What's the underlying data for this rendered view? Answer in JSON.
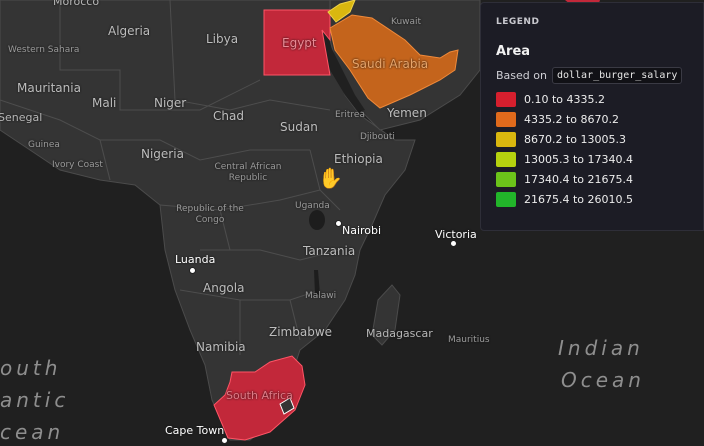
{
  "legend": {
    "header": "LEGEND",
    "title": "Area",
    "based_on_label": "Based on",
    "field": "dollar_burger_salary",
    "items": [
      {
        "label": "0.10 to 4335.2",
        "color": "#d61f2e"
      },
      {
        "label": "4335.2 to 8670.2",
        "color": "#e06a1c"
      },
      {
        "label": "8670.2 to 13005.3",
        "color": "#d9b70f"
      },
      {
        "label": "13005.3 to 17340.4",
        "color": "#b6d20f"
      },
      {
        "label": "17340.4 to 21675.4",
        "color": "#6cc31a"
      },
      {
        "label": "21675.4 to 26010.5",
        "color": "#22b52a"
      }
    ]
  },
  "map": {
    "countries": {
      "morocco": "Morocco",
      "western_sahara": "Western Sahara",
      "algeria": "Algeria",
      "libya": "Libya",
      "egypt": "Egypt",
      "saudi_arabia": "Saudi Arabia",
      "kuwait": "Kuwait",
      "mauritania": "Mauritania",
      "mali": "Mali",
      "niger": "Niger",
      "chad": "Chad",
      "sudan": "Sudan",
      "eritrea": "Eritrea",
      "yemen": "Yemen",
      "djibouti": "Djibouti",
      "senegal": "Senegal",
      "guinea": "Guinea",
      "ivory_coast": "Ivory Coast",
      "nigeria": "Nigeria",
      "car": "Central African Republic",
      "ethiopia": "Ethiopia",
      "congo": "Republic of the Congo",
      "uganda": "Uganda",
      "tanzania": "Tanzania",
      "angola": "Angola",
      "malawi": "Malawi",
      "zimbabwe": "Zimbabwe",
      "namibia": "Namibia",
      "madagascar": "Madagascar",
      "mauritius": "Mauritius",
      "south_africa": "South Africa"
    },
    "cities": {
      "nairobi": "Nairobi",
      "victoria": "Victoria",
      "luanda": "Luanda",
      "cape_town": "Cape Town"
    },
    "oceans": {
      "south_atlantic_1": "outh",
      "south_atlantic_2": "antic",
      "south_atlantic_3": "cean",
      "indian_1": "Indian",
      "indian_2": "Ocean"
    }
  }
}
